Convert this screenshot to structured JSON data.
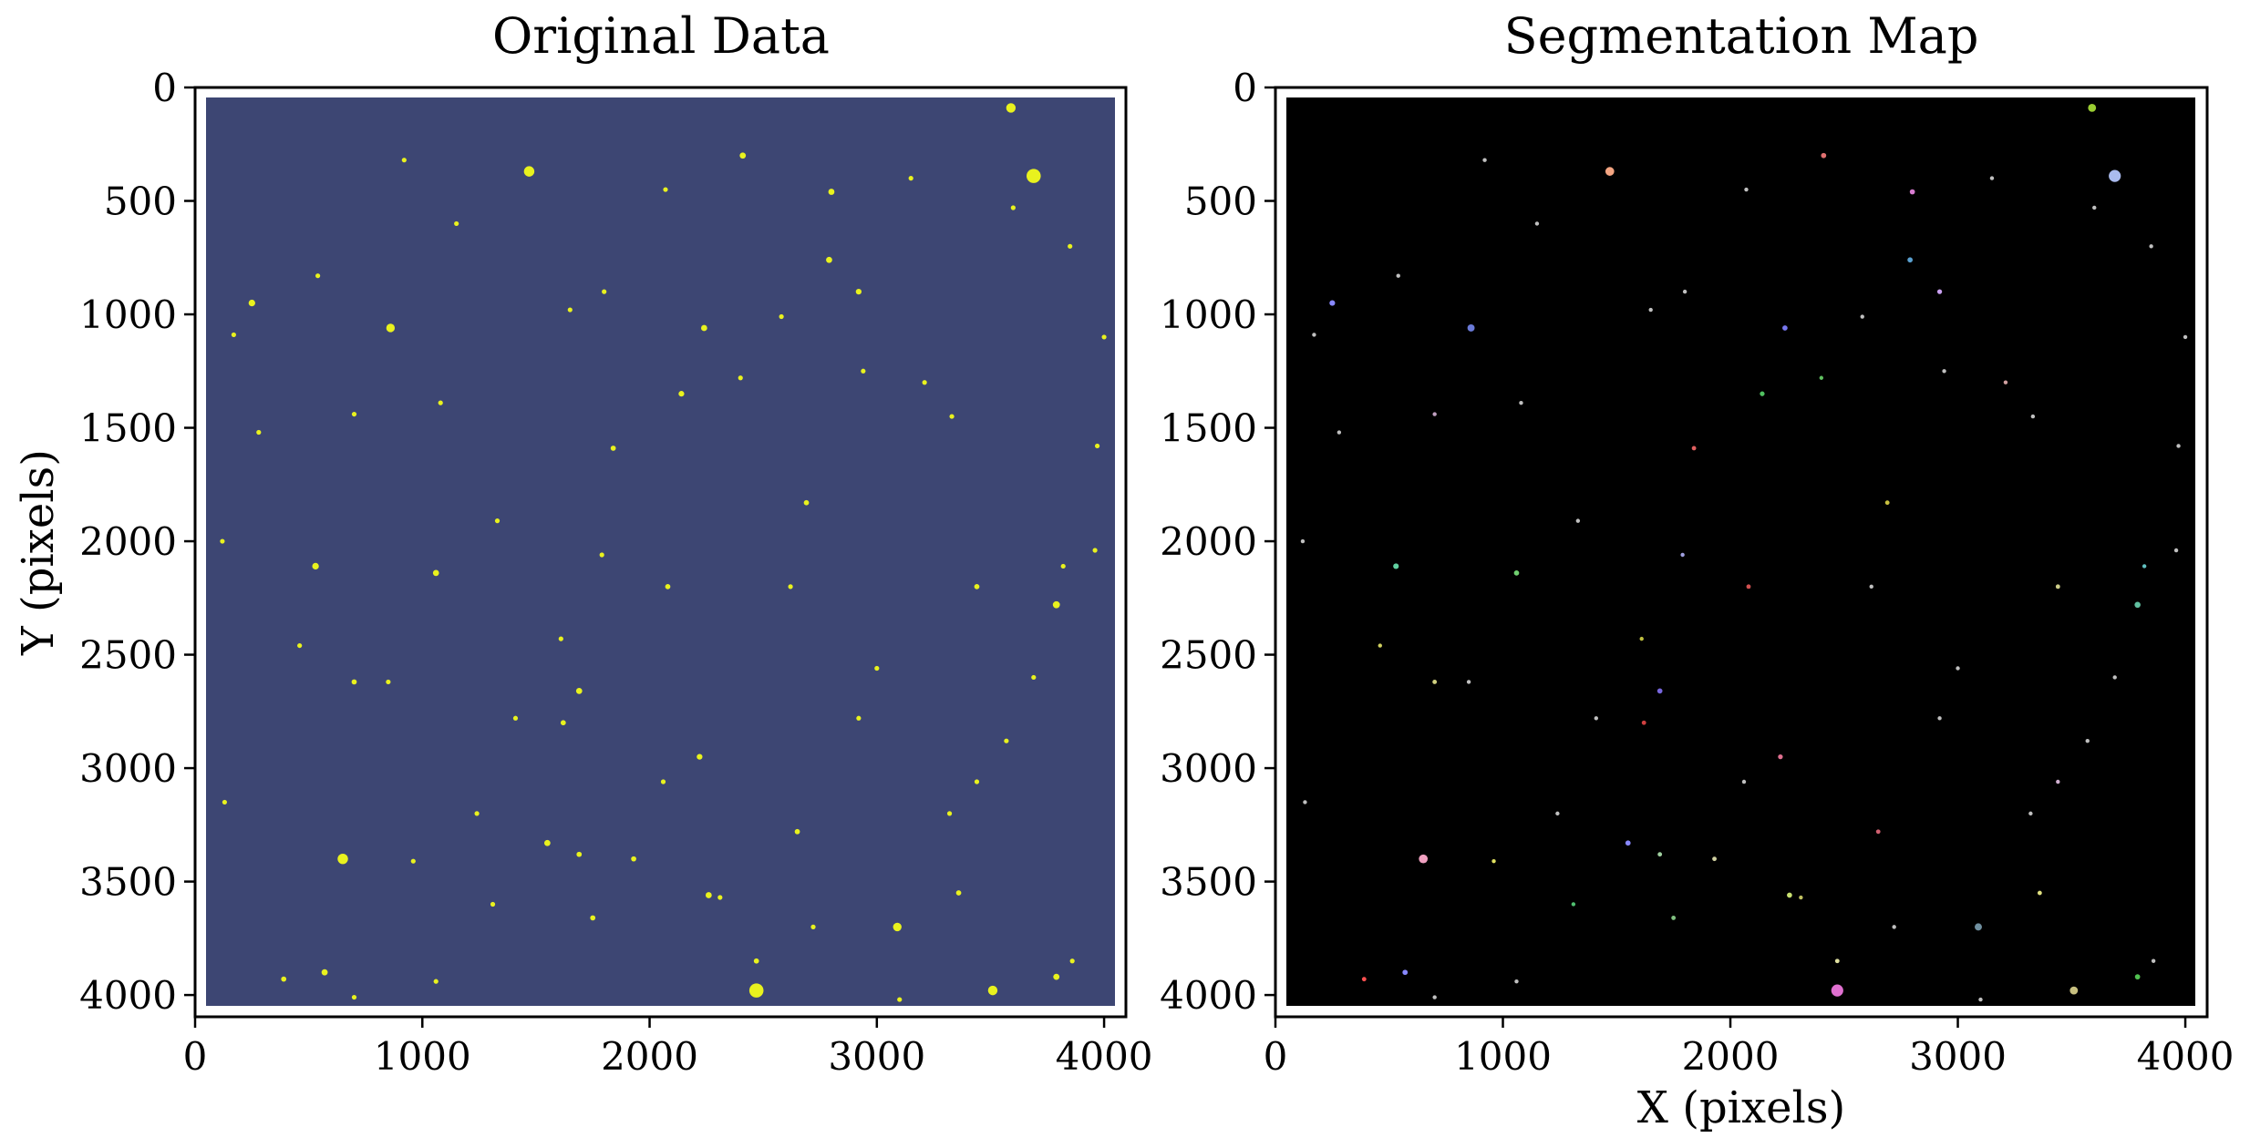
{
  "panels": [
    {
      "title": "Original Data",
      "ylabel": "Y (pixels)",
      "xlabel": "",
      "background_color": "#3d4673",
      "source_color": "#e9f21e"
    },
    {
      "title": "Segmentation Map",
      "ylabel": "",
      "xlabel": "X (pixels)",
      "background_color": "#000000"
    }
  ],
  "axes": {
    "x_ticks": [
      "0",
      "1000",
      "2000",
      "3000",
      "4000"
    ],
    "y_ticks": [
      "0",
      "500",
      "1000",
      "1500",
      "2000",
      "2500",
      "3000",
      "3500",
      "4000"
    ],
    "x_range": [
      0,
      4096
    ],
    "y_range": [
      4096,
      0
    ]
  },
  "sources": [
    [
      3590,
      90,
      2.0,
      "#9acd32"
    ],
    [
      1470,
      370,
      2.2,
      "#f4a582"
    ],
    [
      3690,
      390,
      3.0,
      "#aabbee"
    ],
    [
      2410,
      300,
      1.3,
      "#e07070"
    ],
    [
      2800,
      460,
      1.3,
      "#d77cd0"
    ],
    [
      2790,
      760,
      1.3,
      "#5aa0d0"
    ],
    [
      2920,
      900,
      1.2,
      "#c9a0f0"
    ],
    [
      250,
      950,
      1.4,
      "#8888ff"
    ],
    [
      860,
      1060,
      1.8,
      "#6a7ad8"
    ],
    [
      2240,
      1060,
      1.3,
      "#7777ee"
    ],
    [
      2140,
      1350,
      1.2,
      "#50c060"
    ],
    [
      1840,
      1590,
      1.1,
      "#e06060"
    ],
    [
      2690,
      1830,
      1.1,
      "#c8c040"
    ],
    [
      530,
      2110,
      1.4,
      "#60d0a0"
    ],
    [
      1060,
      2140,
      1.3,
      "#70d070"
    ],
    [
      3790,
      2280,
      1.5,
      "#60c0a0"
    ],
    [
      3440,
      2200,
      1.1,
      "#cccc88"
    ],
    [
      2080,
      2200,
      1.1,
      "#d05050"
    ],
    [
      1690,
      2660,
      1.3,
      "#7766dd"
    ],
    [
      1620,
      2800,
      1.1,
      "#d04040"
    ],
    [
      2220,
      2950,
      1.2,
      "#e07090"
    ],
    [
      2650,
      3280,
      1.1,
      "#d06070"
    ],
    [
      1550,
      3330,
      1.3,
      "#8888ff"
    ],
    [
      1690,
      3380,
      1.1,
      "#a0d0a0"
    ],
    [
      650,
      3400,
      2.2,
      "#f0a0c0"
    ],
    [
      1930,
      3400,
      1.1,
      "#d0d0a0"
    ],
    [
      2260,
      3560,
      1.3,
      "#c8e070"
    ],
    [
      3090,
      3700,
      1.8,
      "#7090a0"
    ],
    [
      1750,
      3660,
      1.1,
      "#80c080"
    ],
    [
      3360,
      3550,
      1.1,
      "#e0e080"
    ],
    [
      570,
      3900,
      1.3,
      "#8888ff"
    ],
    [
      390,
      3930,
      1.1,
      "#ff5050"
    ],
    [
      2470,
      3980,
      3.0,
      "#e070d0"
    ],
    [
      3510,
      3980,
      2.0,
      "#c8c080"
    ],
    [
      3790,
      3920,
      1.3,
      "#50c050"
    ],
    [
      2470,
      3850,
      1.1,
      "#e0e0a0"
    ],
    [
      1310,
      3600,
      1.0,
      "#50c070"
    ],
    [
      2310,
      3570,
      1.0,
      "#c0c060"
    ],
    [
      3440,
      3060,
      1.0,
      "#d0b0d0"
    ],
    [
      700,
      2620,
      1.1,
      "#d0d080"
    ],
    [
      850,
      2620,
      1.0,
      "#c0c0c0"
    ],
    [
      960,
      3410,
      1.0,
      "#e0e060"
    ],
    [
      1330,
      1910,
      1.0,
      "#c0c0c0"
    ],
    [
      1790,
      2060,
      1.0,
      "#a0a0e0"
    ],
    [
      1610,
      2430,
      1.0,
      "#c0c040"
    ],
    [
      2400,
      1280,
      1.0,
      "#60c060"
    ],
    [
      2940,
      1250,
      1.0,
      "#c0c0c0"
    ],
    [
      3210,
      1300,
      1.0,
      "#d0a0a0"
    ],
    [
      3570,
      2880,
      1.0,
      "#c0c0c0"
    ],
    [
      3820,
      2110,
      1.0,
      "#60c0c0"
    ],
    [
      3960,
      2040,
      1.0,
      "#c0c0c0"
    ],
    [
      130,
      3150,
      1.0,
      "#c0c0c0"
    ],
    [
      120,
      2000,
      1.0,
      "#c0c0c0"
    ],
    [
      460,
      2460,
      1.0,
      "#d0d060"
    ],
    [
      280,
      1520,
      1.0,
      "#c0c0c0"
    ],
    [
      700,
      1440,
      1.0,
      "#c0a0c0"
    ],
    [
      1080,
      1390,
      1.0,
      "#c0c0c0"
    ],
    [
      1800,
      900,
      1.0,
      "#c0c0c0"
    ],
    [
      2070,
      450,
      1.0,
      "#c0c0c0"
    ],
    [
      1150,
      600,
      1.0,
      "#c0c0c0"
    ],
    [
      3850,
      700,
      1.0,
      "#c0c0c0"
    ],
    [
      4000,
      1100,
      1.0,
      "#c0c0c0"
    ],
    [
      3970,
      1580,
      1.0,
      "#c0c0c0"
    ],
    [
      3330,
      1450,
      1.0,
      "#c0c0c0"
    ],
    [
      2620,
      2200,
      1.0,
      "#c0c0c0"
    ],
    [
      3000,
      2560,
      1.0,
      "#c0c0c0"
    ],
    [
      2720,
      3700,
      1.0,
      "#c0c0c0"
    ],
    [
      3860,
      3850,
      1.0,
      "#c0c0c0"
    ],
    [
      1060,
      3940,
      1.0,
      "#c0c0c0"
    ],
    [
      700,
      4010,
      1.0,
      "#c0c0c0"
    ],
    [
      3100,
      4020,
      1.0,
      "#c0c0c0"
    ],
    [
      3690,
      2600,
      1.0,
      "#c0c0c0"
    ],
    [
      2920,
      2780,
      1.0,
      "#c0c0c0"
    ],
    [
      1410,
      2780,
      1.0,
      "#c0c0c0"
    ],
    [
      3320,
      3200,
      1.0,
      "#c0c0c0"
    ],
    [
      1240,
      3200,
      1.0,
      "#c0c0c0"
    ],
    [
      2060,
      3060,
      1.0,
      "#c0c0c0"
    ],
    [
      3600,
      530,
      1.0,
      "#c0c0c0"
    ],
    [
      3150,
      400,
      1.0,
      "#c0c0c0"
    ],
    [
      2580,
      1010,
      1.0,
      "#c0c0c0"
    ],
    [
      1650,
      980,
      1.0,
      "#c0c0c0"
    ],
    [
      540,
      830,
      1.0,
      "#c0c0c0"
    ],
    [
      170,
      1090,
      1.0,
      "#c0c0c0"
    ],
    [
      920,
      320,
      1.0,
      "#c0c0c0"
    ]
  ]
}
